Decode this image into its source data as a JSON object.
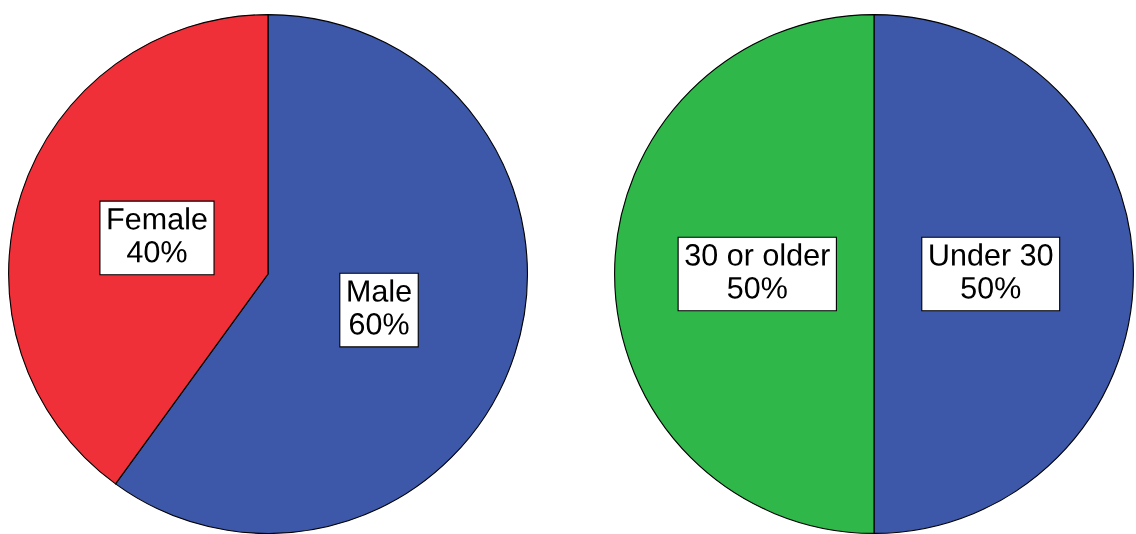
{
  "chart_data": [
    {
      "type": "pie",
      "categories": [
        "Male",
        "Female"
      ],
      "values": [
        60,
        40
      ],
      "value_labels": [
        "60%",
        "40%"
      ],
      "colors": [
        "#3d57a9",
        "#ef3038"
      ]
    },
    {
      "type": "pie",
      "categories": [
        "Under 30",
        "30 or older"
      ],
      "values": [
        50,
        50
      ],
      "value_labels": [
        "50%",
        "50%"
      ],
      "colors": [
        "#3d57a9",
        "#30b74a"
      ]
    }
  ]
}
